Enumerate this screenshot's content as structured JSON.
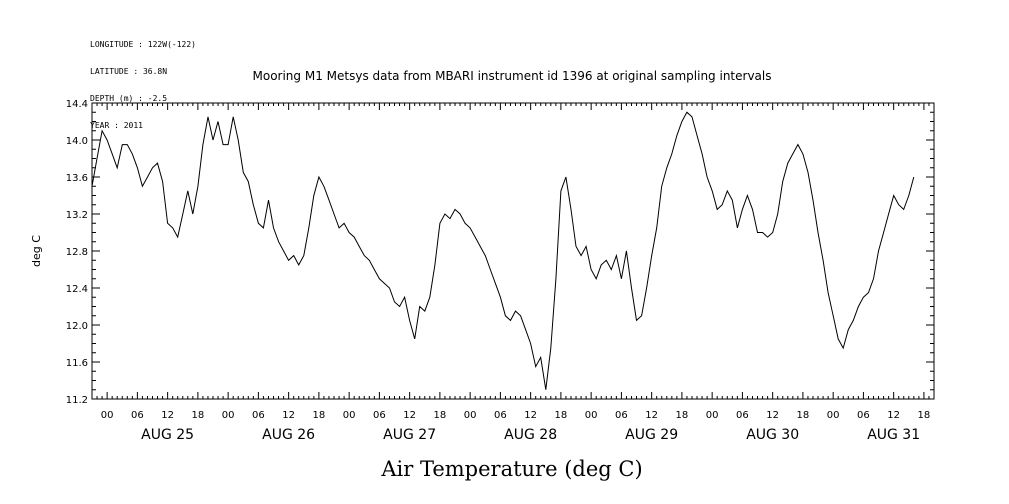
{
  "header": {
    "longitude": "LONGITUDE : 122W(-122)",
    "latitude": "LATITUDE : 36.8N",
    "depth": "DEPTH (m) : -2.5",
    "year": "YEAR : 2011"
  },
  "chart_data": {
    "type": "line",
    "title": "Mooring M1 Metsys data from MBARI instrument id 1396 at original sampling intervals",
    "ylabel": "deg C",
    "xlabel": "Air Temperature (deg C)",
    "ylim": [
      11.2,
      14.4
    ],
    "xlim_hours": [
      -3,
      164
    ],
    "grid": false,
    "y_ticks": [
      "11.2",
      "11.6",
      "12.0",
      "12.4",
      "12.8",
      "13.2",
      "13.6",
      "14.0",
      "14.4"
    ],
    "x_hour_ticks": [
      "00",
      "06",
      "12",
      "18",
      "00",
      "06",
      "12",
      "18",
      "00",
      "06",
      "12",
      "18",
      "00",
      "06",
      "12",
      "18",
      "00",
      "06",
      "12",
      "18",
      "00",
      "06",
      "12",
      "18",
      "00",
      "06",
      "12",
      "18"
    ],
    "day_labels": [
      "AUG 25",
      "AUG 26",
      "AUG 27",
      "AUG 28",
      "AUG 29",
      "AUG 30",
      "AUG 31"
    ],
    "series": [
      {
        "points": [
          [
            -3,
            13.5
          ],
          [
            -2,
            13.8
          ],
          [
            -1,
            14.1
          ],
          [
            0,
            14.0
          ],
          [
            1,
            13.85
          ],
          [
            2,
            13.7
          ],
          [
            3,
            13.95
          ],
          [
            4,
            13.95
          ],
          [
            5,
            13.85
          ],
          [
            6,
            13.7
          ],
          [
            7,
            13.5
          ],
          [
            8,
            13.6
          ],
          [
            9,
            13.7
          ],
          [
            10,
            13.75
          ],
          [
            11,
            13.55
          ],
          [
            12,
            13.1
          ],
          [
            13,
            13.05
          ],
          [
            14,
            12.95
          ],
          [
            15,
            13.2
          ],
          [
            16,
            13.45
          ],
          [
            17,
            13.2
          ],
          [
            18,
            13.5
          ],
          [
            19,
            13.95
          ],
          [
            20,
            14.25
          ],
          [
            21,
            14.0
          ],
          [
            22,
            14.2
          ],
          [
            23,
            13.95
          ],
          [
            24,
            13.95
          ],
          [
            25,
            14.25
          ],
          [
            26,
            14.0
          ],
          [
            27,
            13.65
          ],
          [
            28,
            13.55
          ],
          [
            29,
            13.3
          ],
          [
            30,
            13.1
          ],
          [
            31,
            13.05
          ],
          [
            32,
            13.35
          ],
          [
            33,
            13.05
          ],
          [
            34,
            12.9
          ],
          [
            35,
            12.8
          ],
          [
            36,
            12.7
          ],
          [
            37,
            12.75
          ],
          [
            38,
            12.65
          ],
          [
            39,
            12.75
          ],
          [
            40,
            13.05
          ],
          [
            41,
            13.4
          ],
          [
            42,
            13.6
          ],
          [
            43,
            13.5
          ],
          [
            44,
            13.35
          ],
          [
            45,
            13.2
          ],
          [
            46,
            13.05
          ],
          [
            47,
            13.1
          ],
          [
            48,
            13.0
          ],
          [
            49,
            12.95
          ],
          [
            50,
            12.85
          ],
          [
            51,
            12.75
          ],
          [
            52,
            12.7
          ],
          [
            53,
            12.6
          ],
          [
            54,
            12.5
          ],
          [
            55,
            12.45
          ],
          [
            56,
            12.4
          ],
          [
            57,
            12.25
          ],
          [
            58,
            12.2
          ],
          [
            59,
            12.3
          ],
          [
            60,
            12.05
          ],
          [
            61,
            11.85
          ],
          [
            62,
            12.2
          ],
          [
            63,
            12.15
          ],
          [
            64,
            12.3
          ],
          [
            65,
            12.65
          ],
          [
            66,
            13.1
          ],
          [
            67,
            13.2
          ],
          [
            68,
            13.15
          ],
          [
            69,
            13.25
          ],
          [
            70,
            13.2
          ],
          [
            71,
            13.1
          ],
          [
            72,
            13.05
          ],
          [
            73,
            12.95
          ],
          [
            74,
            12.85
          ],
          [
            75,
            12.75
          ],
          [
            76,
            12.6
          ],
          [
            77,
            12.45
          ],
          [
            78,
            12.3
          ],
          [
            79,
            12.1
          ],
          [
            80,
            12.05
          ],
          [
            81,
            12.15
          ],
          [
            82,
            12.1
          ],
          [
            83,
            11.95
          ],
          [
            84,
            11.8
          ],
          [
            85,
            11.55
          ],
          [
            86,
            11.65
          ],
          [
            87,
            11.3
          ],
          [
            88,
            11.75
          ],
          [
            89,
            12.5
          ],
          [
            90,
            13.45
          ],
          [
            91,
            13.6
          ],
          [
            92,
            13.25
          ],
          [
            93,
            12.85
          ],
          [
            94,
            12.75
          ],
          [
            95,
            12.85
          ],
          [
            96,
            12.6
          ],
          [
            97,
            12.5
          ],
          [
            98,
            12.65
          ],
          [
            99,
            12.7
          ],
          [
            100,
            12.6
          ],
          [
            101,
            12.75
          ],
          [
            102,
            12.5
          ],
          [
            103,
            12.8
          ],
          [
            104,
            12.4
          ],
          [
            105,
            12.05
          ],
          [
            106,
            12.1
          ],
          [
            107,
            12.4
          ],
          [
            108,
            12.75
          ],
          [
            109,
            13.05
          ],
          [
            110,
            13.5
          ],
          [
            111,
            13.7
          ],
          [
            112,
            13.85
          ],
          [
            113,
            14.05
          ],
          [
            114,
            14.2
          ],
          [
            115,
            14.3
          ],
          [
            116,
            14.25
          ],
          [
            117,
            14.05
          ],
          [
            118,
            13.85
          ],
          [
            119,
            13.6
          ],
          [
            120,
            13.45
          ],
          [
            121,
            13.25
          ],
          [
            122,
            13.3
          ],
          [
            123,
            13.45
          ],
          [
            124,
            13.35
          ],
          [
            125,
            13.05
          ],
          [
            126,
            13.25
          ],
          [
            127,
            13.4
          ],
          [
            128,
            13.25
          ],
          [
            129,
            13.0
          ],
          [
            130,
            13.0
          ],
          [
            131,
            12.95
          ],
          [
            132,
            13.0
          ],
          [
            133,
            13.2
          ],
          [
            134,
            13.55
          ],
          [
            135,
            13.75
          ],
          [
            136,
            13.85
          ],
          [
            137,
            13.95
          ],
          [
            138,
            13.85
          ],
          [
            139,
            13.65
          ],
          [
            140,
            13.35
          ],
          [
            141,
            13.0
          ],
          [
            142,
            12.7
          ],
          [
            143,
            12.35
          ],
          [
            144,
            12.1
          ],
          [
            145,
            11.85
          ],
          [
            146,
            11.75
          ],
          [
            147,
            11.95
          ],
          [
            148,
            12.05
          ],
          [
            149,
            12.2
          ],
          [
            150,
            12.3
          ],
          [
            151,
            12.35
          ],
          [
            152,
            12.5
          ],
          [
            153,
            12.8
          ],
          [
            154,
            13.0
          ],
          [
            155,
            13.2
          ],
          [
            156,
            13.4
          ],
          [
            157,
            13.3
          ],
          [
            158,
            13.25
          ],
          [
            159,
            13.4
          ],
          [
            160,
            13.6
          ]
        ]
      }
    ]
  }
}
